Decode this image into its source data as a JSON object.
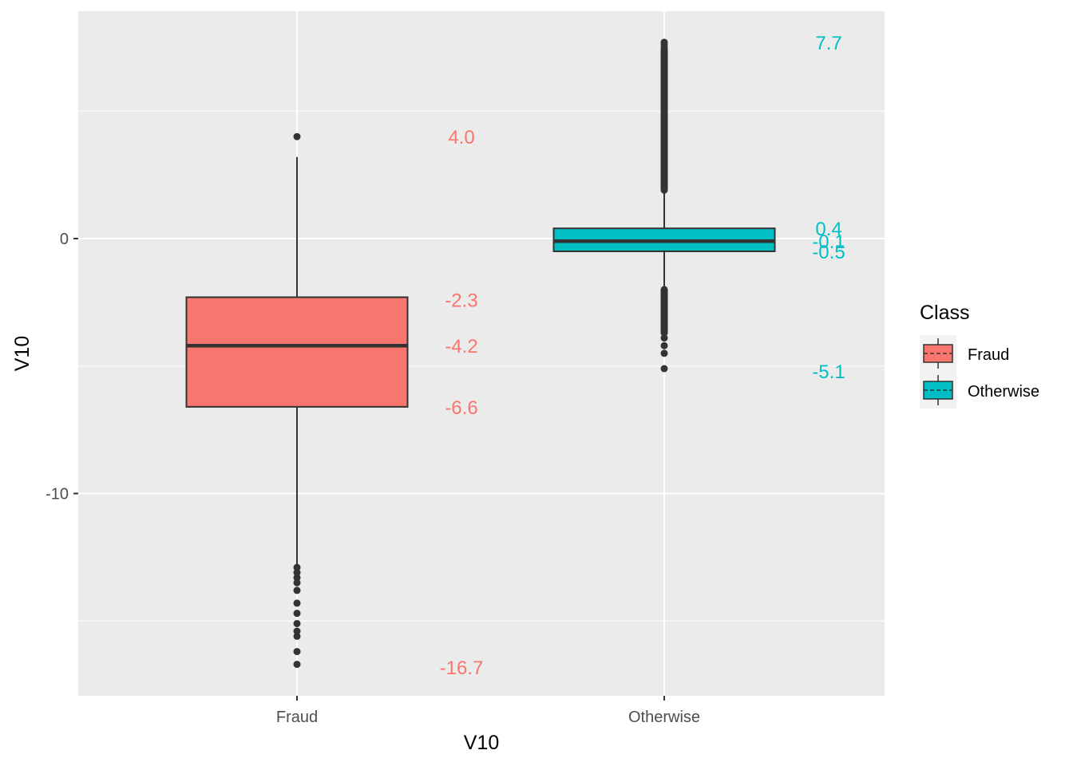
{
  "chart_data": {
    "type": "box",
    "xlabel": "V10",
    "ylabel": "V10",
    "ylim": [
      -17.9,
      9.1
    ],
    "y_ticks": [
      0,
      -10
    ],
    "categories": [
      "Fraud",
      "Otherwise"
    ],
    "grid": true,
    "legend": {
      "title": "Class",
      "position": "right",
      "entries": [
        "Fraud",
        "Otherwise"
      ]
    },
    "colors": {
      "Fraud": "#F8766D",
      "Otherwise": "#00BFC4"
    },
    "boxes": [
      {
        "name": "Fraud",
        "q1": -6.6,
        "median": -4.2,
        "q3": -2.3,
        "whisker_low": -12.8,
        "whisker_high": 3.2,
        "outliers": [
          4.0,
          -12.9,
          -13.1,
          -13.3,
          -13.5,
          -13.8,
          -14.3,
          -14.7,
          -15.1,
          -15.4,
          -15.6,
          -16.2,
          -16.7
        ],
        "labels": [
          {
            "text": "4.0",
            "value": 4.0
          },
          {
            "text": "-2.3",
            "value": -2.4
          },
          {
            "text": "-4.2",
            "value": -4.2
          },
          {
            "text": "-6.6",
            "value": -6.6
          },
          {
            "text": "-16.7",
            "value": -16.8
          }
        ]
      },
      {
        "name": "Otherwise",
        "q1": -0.5,
        "median": -0.1,
        "q3": 0.4,
        "whisker_low": -1.9,
        "whisker_high": 1.8,
        "outliers_dense": [
          [
            1.9,
            7.4
          ],
          [
            -3.7,
            -2.0
          ]
        ],
        "outliers": [
          7.7,
          7.6,
          7.5,
          -3.9,
          -4.2,
          -4.5,
          -5.1
        ],
        "labels": [
          {
            "text": "7.7",
            "value": 7.7
          },
          {
            "text": "0.4",
            "value": 0.4
          },
          {
            "text": "-0.1",
            "value": -0.1
          },
          {
            "text": "-0.5",
            "value": -0.5
          },
          {
            "text": "-5.1",
            "value": -5.2
          }
        ]
      }
    ]
  }
}
